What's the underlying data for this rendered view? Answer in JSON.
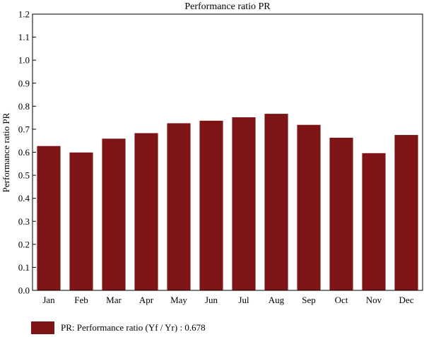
{
  "chart_data": {
    "type": "bar",
    "title": "Performance ratio PR",
    "xlabel": "",
    "ylabel": "Performance ratio PR",
    "categories": [
      "Jan",
      "Feb",
      "Mar",
      "Apr",
      "May",
      "Jun",
      "Jul",
      "Aug",
      "Sep",
      "Oct",
      "Nov",
      "Dec"
    ],
    "values": [
      0.627,
      0.599,
      0.659,
      0.683,
      0.726,
      0.737,
      0.752,
      0.767,
      0.719,
      0.663,
      0.596,
      0.675
    ],
    "ylim": [
      0,
      1.2
    ],
    "yticks": [
      "0.0",
      "0.1",
      "0.2",
      "0.3",
      "0.4",
      "0.5",
      "0.6",
      "0.7",
      "0.8",
      "0.9",
      "1.0",
      "1.1",
      "1.2"
    ],
    "grid": false,
    "bar_color": "#7f1416",
    "legend": {
      "placement": "bottom-left",
      "label": "PR: Performance ratio (Yf / Yr) : 0.678"
    }
  }
}
